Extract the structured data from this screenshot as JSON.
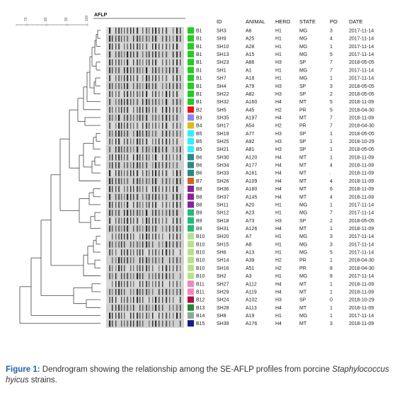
{
  "figure": {
    "method_label": "AFLP",
    "scale_ticks": [
      "70",
      "80",
      "90",
      "100"
    ],
    "columns": [
      "ID",
      "ANIMAL",
      "HERD",
      "STATE",
      "PO",
      "DATE"
    ],
    "rows": [
      {
        "profile": "B1",
        "color": "#22cc22",
        "id": "SH3",
        "animal": "A6",
        "herd": "H1",
        "state": "MG",
        "po": "3",
        "date": "2017-11-14"
      },
      {
        "profile": "B1",
        "color": "#22cc22",
        "id": "SH9",
        "animal": "A25",
        "herd": "H1",
        "state": "MG",
        "po": "4",
        "date": "2017-11-14"
      },
      {
        "profile": "B1",
        "color": "#22cc22",
        "id": "SH10",
        "animal": "A28",
        "herd": "H1",
        "state": "MG",
        "po": "1",
        "date": "2017-11-14"
      },
      {
        "profile": "B1",
        "color": "#22cc22",
        "id": "SH13",
        "animal": "A15",
        "herd": "H1",
        "state": "MG",
        "po": "5",
        "date": "2017-11-14"
      },
      {
        "profile": "B1",
        "color": "#22cc22",
        "id": "SH23",
        "animal": "A86",
        "herd": "H3",
        "state": "SP",
        "po": "7",
        "date": "2018-05-05"
      },
      {
        "profile": "B1",
        "color": "#22cc22",
        "id": "SH1",
        "animal": "A1",
        "herd": "H1",
        "state": "MG",
        "po": "7",
        "date": "2017-11-14"
      },
      {
        "profile": "B1",
        "color": "#22cc22",
        "id": "SH7",
        "animal": "A18",
        "herd": "H1",
        "state": "MG",
        "po": "1",
        "date": "2017-11-14"
      },
      {
        "profile": "B1",
        "color": "#22cc22",
        "id": "SH4",
        "animal": "A79",
        "herd": "H3",
        "state": "SP",
        "po": "3",
        "date": "2018-05-05"
      },
      {
        "profile": "B1",
        "color": "#22cc22",
        "id": "SH22",
        "animal": "A82",
        "herd": "H3",
        "state": "SP",
        "po": "2",
        "date": "2018-05-05"
      },
      {
        "profile": "B1",
        "color": "#22cc22",
        "id": "SH32",
        "animal": "A160",
        "herd": "H4",
        "state": "MT",
        "po": "5",
        "date": "2018-11-09"
      },
      {
        "profile": "B2",
        "color": "#ee1111",
        "id": "SH5",
        "animal": "A45",
        "herd": "H2",
        "state": "PR",
        "po": "5",
        "date": "2018-04-30"
      },
      {
        "profile": "B3",
        "color": "#8888ee",
        "id": "SH35",
        "animal": "A197",
        "herd": "H4",
        "state": "MT",
        "po": "7",
        "date": "2018-11-09"
      },
      {
        "profile": "B4",
        "color": "#ddbb11",
        "id": "SH17",
        "animal": "A54",
        "herd": "H2",
        "state": "PR",
        "po": "7",
        "date": "2018-04-30"
      },
      {
        "profile": "B5",
        "color": "#33eeff",
        "id": "SH19",
        "animal": "A77",
        "herd": "H3",
        "state": "SP",
        "po": "1",
        "date": "2018-05-05"
      },
      {
        "profile": "B5",
        "color": "#33eeff",
        "id": "SH25",
        "animal": "A92",
        "herd": "H3",
        "state": "SP",
        "po": "1",
        "date": "2018-10-29"
      },
      {
        "profile": "B5",
        "color": "#33eeff",
        "id": "SH21",
        "animal": "A81",
        "herd": "H3",
        "state": "SP",
        "po": "1",
        "date": "2018-05-05"
      },
      {
        "profile": "B6",
        "color": "#2a8888",
        "id": "SH30",
        "animal": "A120",
        "herd": "H4",
        "state": "MT",
        "po": "1",
        "date": "2018-11-09"
      },
      {
        "profile": "B6",
        "color": "#2a8888",
        "id": "SH34",
        "animal": "A177",
        "herd": "H4",
        "state": "MT",
        "po": "4",
        "date": "2018-11-09"
      },
      {
        "profile": "B6",
        "color": "#2a8888",
        "id": "SH33",
        "animal": "A161",
        "herd": "H4",
        "state": "MT",
        "po": ".",
        "date": "2018-11-09"
      },
      {
        "profile": "B7",
        "color": "#cc6622",
        "id": "SH26",
        "animal": "A109",
        "herd": "H4",
        "state": "MT",
        "po": "4",
        "date": "2018-11-09"
      },
      {
        "profile": "B8",
        "color": "#882299",
        "id": "SH36",
        "animal": "A180",
        "herd": "H4",
        "state": "MT",
        "po": "6",
        "date": "2018-11-09"
      },
      {
        "profile": "B8",
        "color": "#882299",
        "id": "SH37",
        "animal": "A145",
        "herd": "H4",
        "state": "MT",
        "po": "4",
        "date": "2018-11-09"
      },
      {
        "profile": "B8",
        "color": "#882299",
        "id": "SH11",
        "animal": "A20",
        "herd": "H1",
        "state": "MG",
        "po": "1",
        "date": "2017-11-14"
      },
      {
        "profile": "B9",
        "color": "#22bb77",
        "id": "SH12",
        "animal": "A23",
        "herd": "H1",
        "state": "MG",
        "po": "7",
        "date": "2017-11-14"
      },
      {
        "profile": "B9",
        "color": "#22bb77",
        "id": "SH18",
        "animal": "A73",
        "herd": "H3",
        "state": "SP",
        "po": "2",
        "date": "2018-05-05"
      },
      {
        "profile": "B9",
        "color": "#22bb77",
        "id": "SH31",
        "animal": "A126",
        "herd": "H4",
        "state": "MT",
        "po": "1",
        "date": "2018-11-09"
      },
      {
        "profile": "B10",
        "color": "#b8e08a",
        "id": "SH20",
        "animal": "A7",
        "herd": "H1",
        "state": "MG",
        "po": "3",
        "date": "2017-11-14"
      },
      {
        "profile": "B10",
        "color": "#b8e08a",
        "id": "SH15",
        "animal": "A8",
        "herd": "H1",
        "state": "MG",
        "po": "3",
        "date": "2017-11-14"
      },
      {
        "profile": "B10",
        "color": "#b8e08a",
        "id": "SH6",
        "animal": "A13",
        "herd": "H1",
        "state": "MG",
        "po": "5",
        "date": "2017-11-14"
      },
      {
        "profile": "B10",
        "color": "#b8e08a",
        "id": "SH14",
        "animal": "A39",
        "herd": "H2",
        "state": "PR",
        "po": "1",
        "date": "2018-04-30"
      },
      {
        "profile": "B10",
        "color": "#b8e08a",
        "id": "SH16",
        "animal": "A51",
        "herd": "H2",
        "state": "PR",
        "po": "8",
        "date": "2018-04-30"
      },
      {
        "profile": "B10",
        "color": "#b8e08a",
        "id": "SH2",
        "animal": "A3",
        "herd": "H1",
        "state": "MG",
        "po": "8",
        "date": "2017-11-14"
      },
      {
        "profile": "B11",
        "color": "#ee88bb",
        "id": "SH27",
        "animal": "A112",
        "herd": "H4",
        "state": "MT",
        "po": "1",
        "date": "2018-11-09"
      },
      {
        "profile": "B11",
        "color": "#ee88bb",
        "id": "SH29",
        "animal": "A119",
        "herd": "H4",
        "state": "MT",
        "po": "1",
        "date": "2018-11-09"
      },
      {
        "profile": "B12",
        "color": "#aa1144",
        "id": "SH24",
        "animal": "A102",
        "herd": "H3",
        "state": "SP",
        "po": "0",
        "date": "2018-10-29"
      },
      {
        "profile": "B13",
        "color": "#228833",
        "id": "SH28",
        "animal": "A113",
        "herd": "H4",
        "state": "MT",
        "po": "1",
        "date": "2018-11-09"
      },
      {
        "profile": "B14",
        "color": "#88aa99",
        "id": "SH8",
        "animal": "A19",
        "herd": "H1",
        "state": "MG",
        "po": "1",
        "date": "2017-11-14"
      },
      {
        "profile": "B15",
        "color": "#1a1a88",
        "id": "SH39",
        "animal": "A176",
        "herd": "H4",
        "state": "MT",
        "po": "3",
        "date": "2018-11-09"
      }
    ]
  },
  "caption": {
    "label": "Figure 1:",
    "text_before": " Dendrogram showing the relationship among the SE-AFLP profiles from porcine ",
    "species": "Staphylococcus hyicus",
    "text_after": " strains."
  }
}
